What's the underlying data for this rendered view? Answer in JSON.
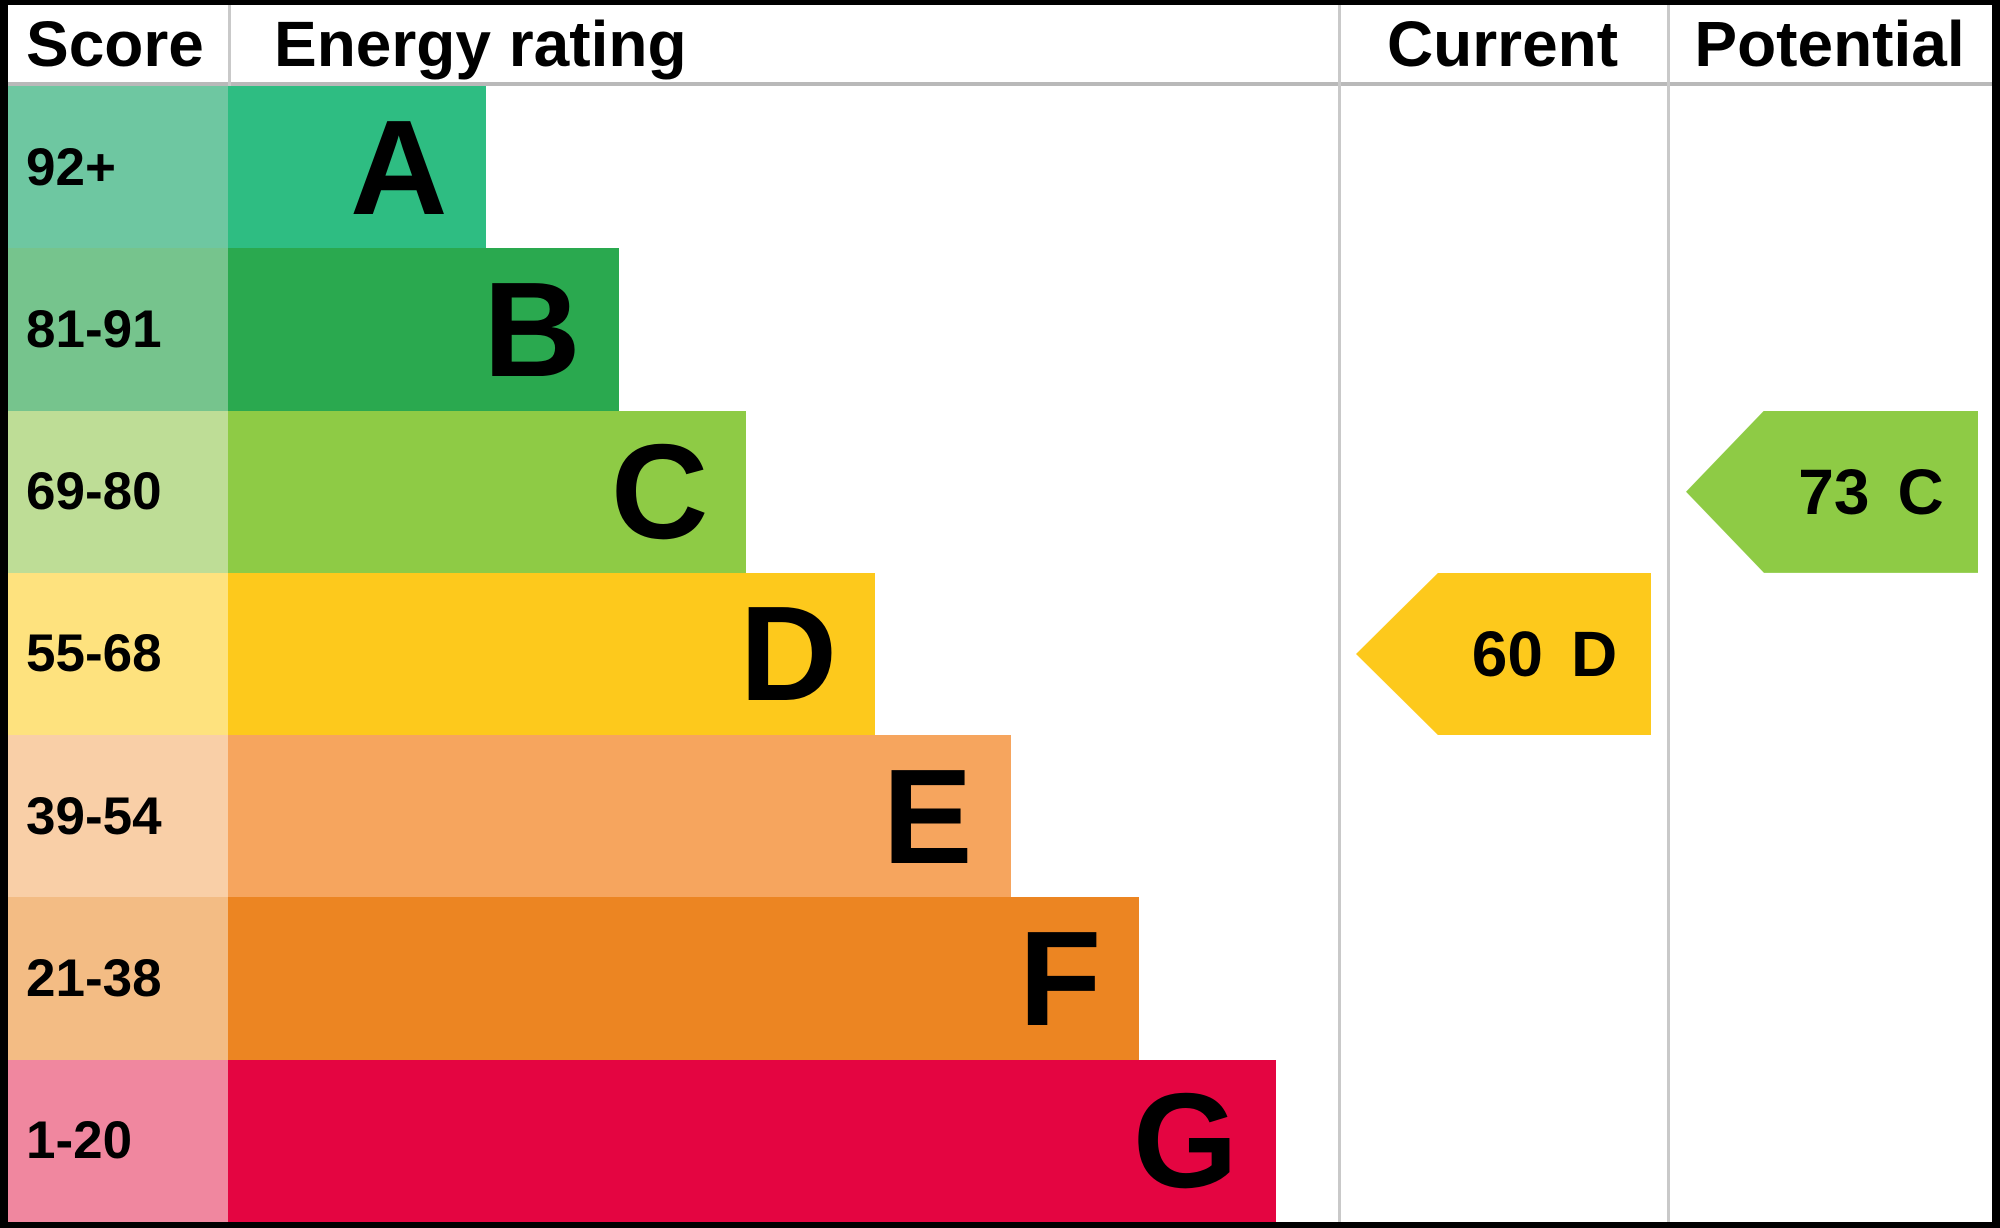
{
  "header": {
    "score": "Score",
    "energy_rating": "Energy rating",
    "current": "Current",
    "potential": "Potential"
  },
  "bands": [
    {
      "letter": "A",
      "score_range": "92+",
      "color": "#2ebd82",
      "tint": "#6ec7a1",
      "width_pct": 23.2
    },
    {
      "letter": "B",
      "score_range": "81-91",
      "color": "#2aa94f",
      "tint": "#76c48d",
      "width_pct": 35.2
    },
    {
      "letter": "C",
      "score_range": "69-80",
      "color": "#8ecb45",
      "tint": "#bedd96",
      "width_pct": 46.7
    },
    {
      "letter": "D",
      "score_range": "55-68",
      "color": "#fdc91c",
      "tint": "#fee27e",
      "width_pct": 58.3
    },
    {
      "letter": "E",
      "score_range": "39-54",
      "color": "#f6a55e",
      "tint": "#f9cfa7",
      "width_pct": 70.5
    },
    {
      "letter": "F",
      "score_range": "21-38",
      "color": "#ec8522",
      "tint": "#f3bc84",
      "width_pct": 82.1
    },
    {
      "letter": "G",
      "score_range": "1-20",
      "color": "#e40541",
      "tint": "#f0879f",
      "width_pct": 94.4
    }
  ],
  "markers": {
    "current": {
      "value": "60",
      "letter": "D",
      "band": "D",
      "color": "#fdc91c"
    },
    "potential": {
      "value": "73",
      "letter": "C",
      "band": "C",
      "color": "#8ecb45"
    }
  },
  "colors": {
    "frame": "#000000",
    "background": "#ffffff",
    "grid_line": "#c9c9c9",
    "header_underline": "#b9b9b9",
    "text": "#000000"
  },
  "chart_data": {
    "type": "bar",
    "orientation": "horizontal",
    "title": "Energy rating (EPC)",
    "columns": [
      "Score",
      "Energy rating",
      "Current",
      "Potential"
    ],
    "categories": [
      "A",
      "B",
      "C",
      "D",
      "E",
      "F",
      "G"
    ],
    "score_ranges": [
      "92+",
      "81-91",
      "69-80",
      "55-68",
      "39-54",
      "21-38",
      "1-20"
    ],
    "bar_lengths_pct_of_column": [
      23.2,
      35.2,
      46.7,
      58.3,
      70.5,
      82.1,
      94.4
    ],
    "band_colors": [
      "#2ebd82",
      "#2aa94f",
      "#8ecb45",
      "#fdc91c",
      "#f6a55e",
      "#ec8522",
      "#e40541"
    ],
    "score_cell_colors": [
      "#6ec7a1",
      "#76c48d",
      "#bedd96",
      "#fee27e",
      "#f9cfa7",
      "#f3bc84",
      "#f0879f"
    ],
    "current": {
      "score": 60,
      "band": "D"
    },
    "potential": {
      "score": 73,
      "band": "C"
    },
    "legend_position": "none",
    "grid": "column dividers only"
  }
}
